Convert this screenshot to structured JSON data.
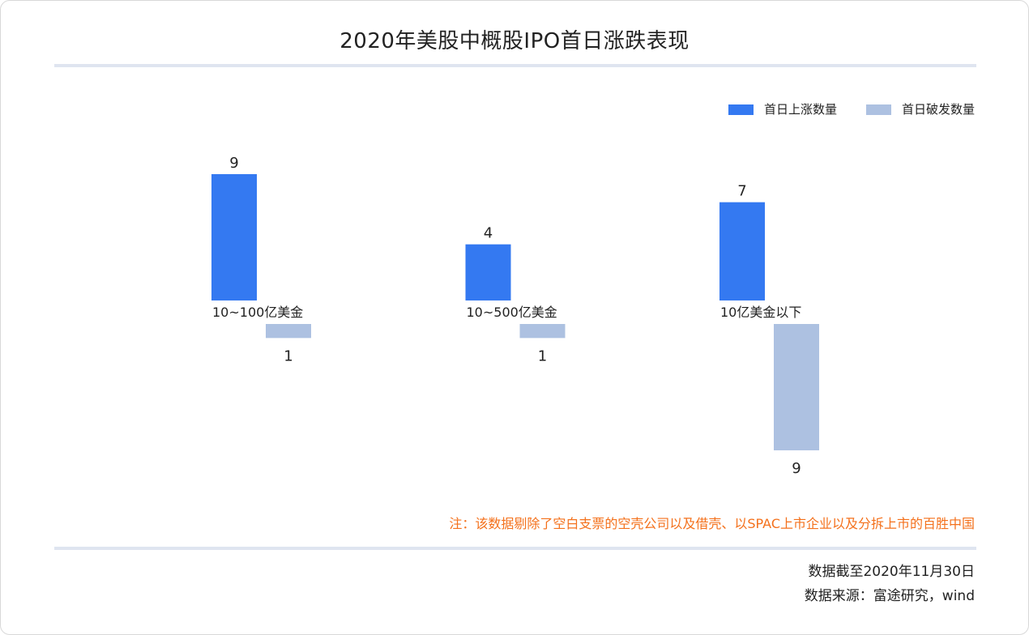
{
  "chart_data": {
    "type": "bar",
    "title": "2020年美股中概股IPO首日涨跌表现",
    "categories": [
      "10~100亿美金",
      "10~500亿美金",
      "10亿美金以下"
    ],
    "series": [
      {
        "name": "首日上涨数量",
        "values": [
          9,
          4,
          7
        ],
        "color": "#3479f1",
        "direction": "up"
      },
      {
        "name": "首日破发数量",
        "values": [
          1,
          1,
          9
        ],
        "color": "#adc1e1",
        "direction": "down"
      }
    ],
    "ylim": [
      0,
      9
    ],
    "grid": false,
    "axes_visible": false,
    "data_labels": true,
    "legend": "top-right"
  },
  "note": {
    "text": "注：该数据剔除了空白支票的空壳公司以及借壳、以SPAC上市企业以及分拆上市的百胜中国",
    "color": "#f4711c"
  },
  "footer": {
    "as_of": "数据截至2020年11月30日",
    "source": "数据来源：富途研究，wind"
  }
}
